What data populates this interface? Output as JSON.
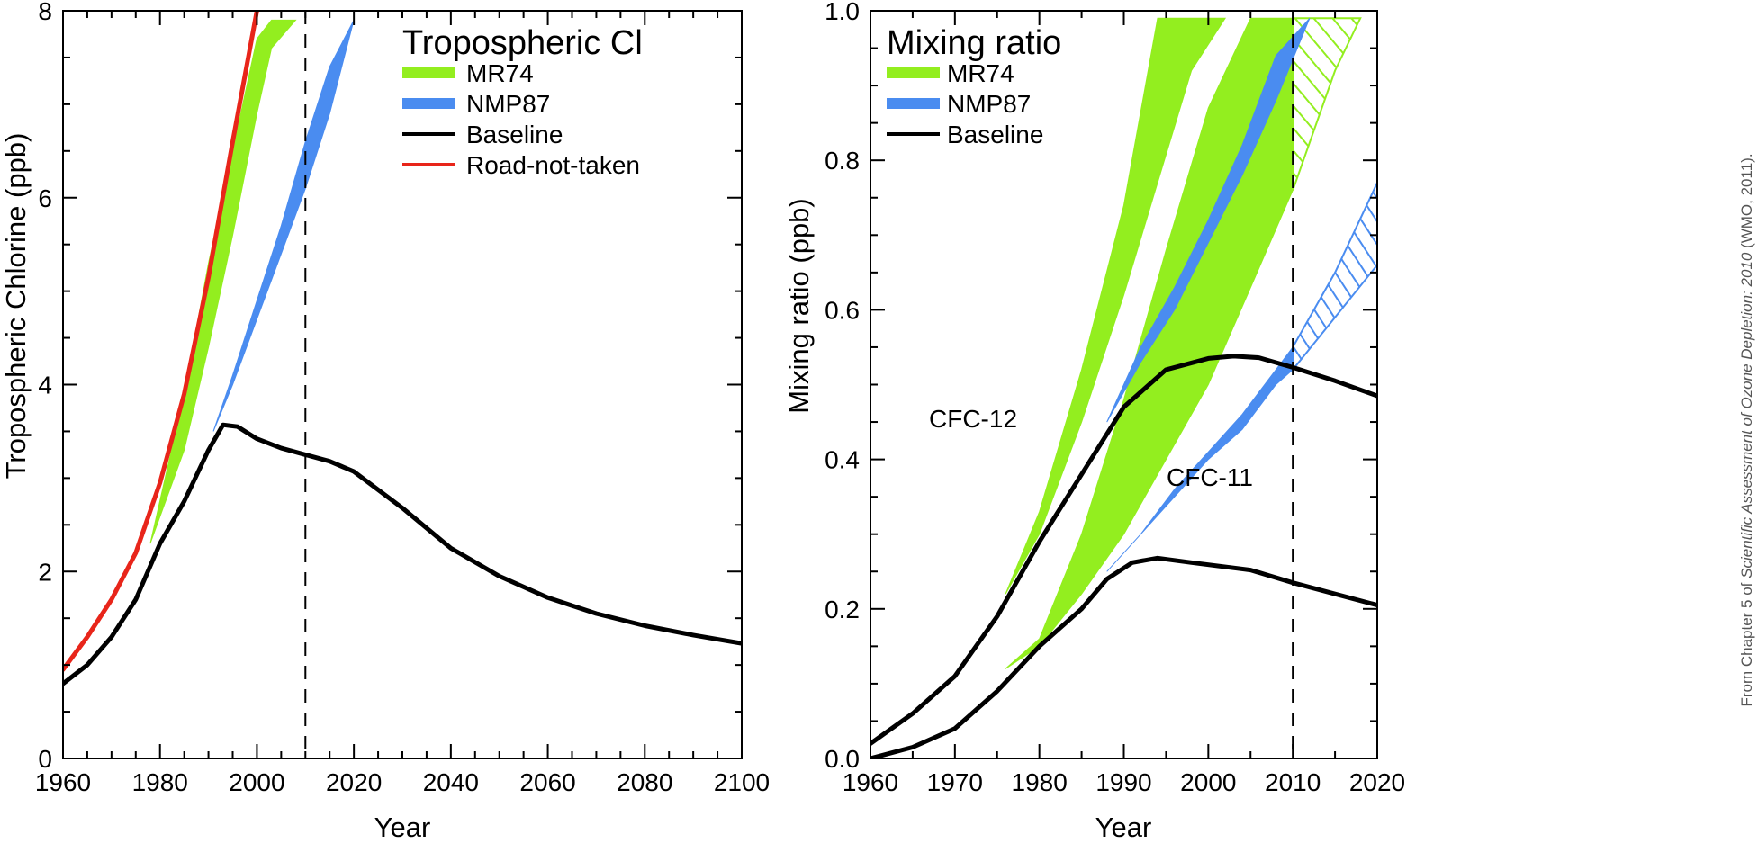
{
  "colors": {
    "mr74": "#93ee1f",
    "nmp87": "#4a8cf0",
    "baseline": "#000000",
    "road": "#e8251a"
  },
  "credit": {
    "prefix": "From Chapter 5 of ",
    "italic": "Scientific Assessment of Ozone Depletion: 2010",
    "suffix": " (WMO, 2011)."
  },
  "chart_data": [
    {
      "type": "line",
      "legend_title": "Tropospheric Cl",
      "xlabel": "Year",
      "ylabel": "Tropospheric Chlorine (ppb)",
      "xlim": [
        1960,
        2100
      ],
      "ylim": [
        0,
        8
      ],
      "xticks": [
        1960,
        1980,
        2000,
        2020,
        2040,
        2060,
        2080,
        2100
      ],
      "yticks": [
        0,
        2,
        4,
        6,
        8
      ],
      "vline": 2010,
      "legend": [
        "MR74",
        "NMP87",
        "Baseline",
        "Road-not-taken"
      ],
      "legend_placement": "top-right",
      "series": [
        {
          "name": "MR74",
          "kind": "band",
          "color": "mr74",
          "x": [
            1978,
            1985,
            1990,
            1995,
            2000,
            2003,
            2008
          ],
          "lower": [
            2.3,
            3.3,
            4.4,
            5.6,
            6.9,
            7.6,
            7.9
          ],
          "upper": [
            2.3,
            3.9,
            5.3,
            6.5,
            7.7,
            7.9,
            7.9
          ]
        },
        {
          "name": "NMP87",
          "kind": "band",
          "color": "nmp87",
          "x": [
            1991,
            1995,
            2000,
            2005,
            2010,
            2015,
            2020
          ],
          "lower": [
            3.5,
            4.0,
            4.7,
            5.4,
            6.1,
            6.9,
            7.9
          ],
          "upper": [
            3.5,
            4.1,
            4.9,
            5.7,
            6.6,
            7.4,
            7.9
          ]
        },
        {
          "name": "Baseline",
          "kind": "line",
          "color": "baseline",
          "x": [
            1960,
            1965,
            1970,
            1975,
            1980,
            1985,
            1990,
            1993,
            1996,
            2000,
            2005,
            2010,
            2015,
            2020,
            2030,
            2040,
            2050,
            2060,
            2070,
            2080,
            2090,
            2100
          ],
          "y": [
            0.8,
            1.0,
            1.3,
            1.7,
            2.3,
            2.75,
            3.3,
            3.57,
            3.55,
            3.42,
            3.32,
            3.25,
            3.18,
            3.07,
            2.68,
            2.25,
            1.95,
            1.72,
            1.55,
            1.42,
            1.32,
            1.23
          ]
        },
        {
          "name": "Road-not-taken",
          "kind": "line",
          "color": "road",
          "x": [
            1960,
            1965,
            1970,
            1975,
            1980,
            1985,
            1990,
            1995,
            2000
          ],
          "y": [
            0.95,
            1.3,
            1.7,
            2.2,
            2.95,
            3.9,
            5.15,
            6.6,
            8.0
          ]
        }
      ]
    },
    {
      "type": "line",
      "legend_title": "Mixing ratio",
      "xlabel": "Year",
      "ylabel": "Mixing ratio (ppb)",
      "xlim": [
        1960,
        2020
      ],
      "ylim": [
        0,
        1
      ],
      "xticks": [
        1960,
        1970,
        1980,
        1990,
        2000,
        2010,
        2020
      ],
      "yticks": [
        0.0,
        0.2,
        0.4,
        0.6,
        0.8,
        1.0
      ],
      "vline": 2010,
      "legend": [
        "MR74",
        "NMP87",
        "Baseline"
      ],
      "legend_placement": "top-left",
      "annotations": [
        {
          "text": "CFC-12",
          "x": 1972,
          "y": 0.315
        },
        {
          "text": "CFC-11",
          "x": 1997,
          "y": 0.195
        }
      ],
      "series": [
        {
          "name": "MR74",
          "kind": "band",
          "color": "mr74",
          "group": "CFC-12",
          "x": [
            1976,
            1980,
            1985,
            1990,
            1994,
            1998,
            2002
          ],
          "lower": [
            0.22,
            0.3,
            0.45,
            0.62,
            0.77,
            0.92,
            0.99
          ],
          "upper": [
            0.22,
            0.33,
            0.52,
            0.74,
            0.99,
            0.99,
            0.99
          ]
        },
        {
          "name": "MR74",
          "kind": "band",
          "color": "mr74",
          "group": "CFC-11",
          "hatch_after": 2010,
          "x": [
            1976,
            1980,
            1985,
            1990,
            1995,
            2000,
            2005,
            2010,
            2015,
            2018
          ],
          "lower": [
            0.12,
            0.15,
            0.22,
            0.3,
            0.4,
            0.5,
            0.63,
            0.76,
            0.92,
            0.99
          ],
          "upper": [
            0.12,
            0.16,
            0.3,
            0.48,
            0.68,
            0.87,
            0.99,
            0.99,
            0.99,
            0.99
          ]
        },
        {
          "name": "NMP87",
          "kind": "band",
          "color": "nmp87",
          "group": "CFC-12",
          "x": [
            1988,
            1992,
            1996,
            2000,
            2004,
            2008,
            2012
          ],
          "lower": [
            0.45,
            0.53,
            0.6,
            0.69,
            0.78,
            0.88,
            0.99
          ],
          "upper": [
            0.45,
            0.55,
            0.63,
            0.72,
            0.82,
            0.94,
            0.99
          ]
        },
        {
          "name": "NMP87",
          "kind": "band",
          "color": "nmp87",
          "group": "CFC-11",
          "hatch_after": 2010,
          "x": [
            1988,
            1992,
            1996,
            2000,
            2004,
            2008,
            2010,
            2015,
            2020
          ],
          "lower": [
            0.25,
            0.3,
            0.35,
            0.4,
            0.44,
            0.5,
            0.52,
            0.59,
            0.66
          ],
          "upper": [
            0.25,
            0.3,
            0.36,
            0.41,
            0.46,
            0.52,
            0.55,
            0.65,
            0.77
          ]
        },
        {
          "name": "Baseline",
          "kind": "line",
          "color": "baseline",
          "group": "CFC-12",
          "x": [
            1960,
            1965,
            1970,
            1975,
            1980,
            1985,
            1990,
            1995,
            2000,
            2003,
            2006,
            2010,
            2015,
            2020
          ],
          "y": [
            0.02,
            0.06,
            0.11,
            0.19,
            0.29,
            0.38,
            0.47,
            0.52,
            0.535,
            0.538,
            0.536,
            0.523,
            0.505,
            0.485
          ]
        },
        {
          "name": "Baseline",
          "kind": "line",
          "color": "baseline",
          "group": "CFC-11",
          "x": [
            1960,
            1965,
            1970,
            1975,
            1980,
            1985,
            1988,
            1991,
            1994,
            1998,
            2005,
            2010,
            2015,
            2020
          ],
          "y": [
            0.0,
            0.015,
            0.04,
            0.09,
            0.15,
            0.2,
            0.24,
            0.262,
            0.268,
            0.262,
            0.252,
            0.235,
            0.22,
            0.205
          ]
        }
      ]
    }
  ]
}
